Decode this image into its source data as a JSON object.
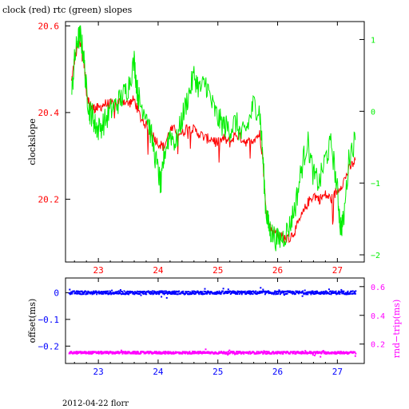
{
  "header": {
    "title": "clock (red) rtc (green) slopes"
  },
  "footer": {
    "text": "2012-04-22 florr"
  },
  "colors": {
    "clock": "#ff0000",
    "rtc": "#00ee00",
    "offset": "#0000ff",
    "rndtrip": "#ff00ff",
    "frame": "#000000"
  },
  "chart_data": [
    {
      "type": "line",
      "title": "clock (red) rtc (green) slopes",
      "xlabel": "",
      "ylabel": "clockslope",
      "y2label": "",
      "xlim": [
        22.45,
        27.45
      ],
      "ylim": [
        20.055,
        20.61
      ],
      "y2lim": [
        -2.1,
        1.25
      ],
      "x_ticks": [
        23,
        24,
        25,
        26,
        27
      ],
      "y_ticks": [
        20.2,
        20.4,
        20.6
      ],
      "y2_ticks": [
        -2,
        -1,
        0,
        1
      ],
      "x_tick_labels": [
        "23",
        "24",
        "25",
        "26",
        "27"
      ],
      "y_tick_labels": [
        "20.2",
        "20.4",
        "20.6"
      ],
      "y2_tick_labels": [
        "−2",
        "−1",
        "0",
        "1"
      ],
      "series": [
        {
          "axis": "left",
          "color": "#ff0000",
          "x": [
            22.55,
            22.6,
            22.65,
            22.7,
            22.75,
            22.8,
            22.85,
            22.9,
            22.95,
            23.0,
            23.1,
            23.2,
            23.3,
            23.4,
            23.5,
            23.6,
            23.7,
            23.8,
            23.9,
            24.0,
            24.1,
            24.2,
            24.3,
            24.4,
            24.5,
            24.6,
            24.7,
            24.8,
            24.9,
            25.0,
            25.1,
            25.2,
            25.3,
            25.4,
            25.5,
            25.6,
            25.7,
            25.75,
            25.8,
            25.85,
            25.9,
            26.0,
            26.1,
            26.2,
            26.3,
            26.4,
            26.5,
            26.6,
            26.7,
            26.8,
            26.9,
            27.0,
            27.1,
            27.2,
            27.3
          ],
          "y": [
            20.47,
            20.52,
            20.55,
            20.57,
            20.53,
            20.45,
            20.42,
            20.41,
            20.41,
            20.41,
            20.42,
            20.42,
            20.42,
            20.43,
            20.42,
            20.43,
            20.39,
            20.37,
            20.35,
            20.33,
            20.32,
            20.36,
            20.36,
            20.35,
            20.37,
            20.36,
            20.35,
            20.34,
            20.34,
            20.33,
            20.34,
            20.33,
            20.35,
            20.34,
            20.33,
            20.34,
            20.35,
            20.3,
            20.18,
            20.14,
            20.13,
            20.12,
            20.11,
            20.11,
            20.13,
            20.16,
            20.19,
            20.21,
            20.2,
            20.21,
            20.2,
            20.22,
            20.24,
            20.27,
            20.29
          ]
        },
        {
          "axis": "right",
          "color": "#00ee00",
          "x": [
            22.55,
            22.6,
            22.65,
            22.7,
            22.75,
            22.8,
            22.85,
            22.9,
            22.95,
            23.0,
            23.1,
            23.2,
            23.3,
            23.4,
            23.5,
            23.6,
            23.65,
            23.7,
            23.8,
            23.9,
            24.0,
            24.05,
            24.1,
            24.2,
            24.3,
            24.4,
            24.5,
            24.6,
            24.7,
            24.8,
            24.9,
            25.0,
            25.1,
            25.2,
            25.3,
            25.4,
            25.5,
            25.6,
            25.7,
            25.75,
            25.8,
            25.85,
            25.9,
            26.0,
            26.1,
            26.2,
            26.3,
            26.4,
            26.5,
            26.6,
            26.7,
            26.8,
            26.9,
            27.0,
            27.05,
            27.1,
            27.2,
            27.3
          ],
          "y": [
            0.2,
            0.7,
            1.0,
            1.05,
            0.8,
            0.3,
            0.0,
            -0.05,
            -0.2,
            -0.25,
            -0.15,
            0.0,
            0.1,
            0.2,
            0.35,
            0.7,
            0.3,
            0.1,
            0.0,
            -0.4,
            -0.85,
            -1.05,
            -0.6,
            -0.3,
            -0.45,
            -0.1,
            0.2,
            0.5,
            0.3,
            0.4,
            0.1,
            -0.1,
            -0.2,
            -0.25,
            -0.15,
            -0.35,
            -0.2,
            0.1,
            0.0,
            -0.6,
            -1.35,
            -1.6,
            -1.7,
            -1.8,
            -1.75,
            -1.6,
            -1.3,
            -0.8,
            -0.4,
            -0.9,
            -1.0,
            -0.65,
            -0.45,
            -1.1,
            -1.6,
            -1.55,
            -0.6,
            -0.4
          ]
        }
      ]
    },
    {
      "type": "scatter",
      "xlabel": "",
      "ylabel": "offset(ms)",
      "y2label": "rnd−trip(ms)",
      "xlim": [
        22.45,
        27.45
      ],
      "ylim": [
        -0.265,
        0.055
      ],
      "y2lim": [
        0.065,
        0.66
      ],
      "x_ticks": [
        23,
        24,
        25,
        26,
        27
      ],
      "y_ticks": [
        0,
        -0.1,
        -0.2
      ],
      "y2_ticks": [
        0.2,
        0.4,
        0.6
      ],
      "x_tick_labels": [
        "23",
        "24",
        "25",
        "26",
        "27"
      ],
      "y_tick_labels": [
        "0",
        "−0.1",
        "−0.2"
      ],
      "y2_tick_labels": [
        "0.2",
        "0.4",
        "0.6"
      ],
      "series": [
        {
          "axis": "left",
          "color": "#0000ff",
          "x_range": [
            22.5,
            27.3
          ],
          "level": 0.0,
          "spread": 0.006
        },
        {
          "axis": "right",
          "color": "#ff00ff",
          "x_range": [
            22.5,
            27.3
          ],
          "level": 0.14,
          "spread": 0.008
        }
      ]
    }
  ]
}
